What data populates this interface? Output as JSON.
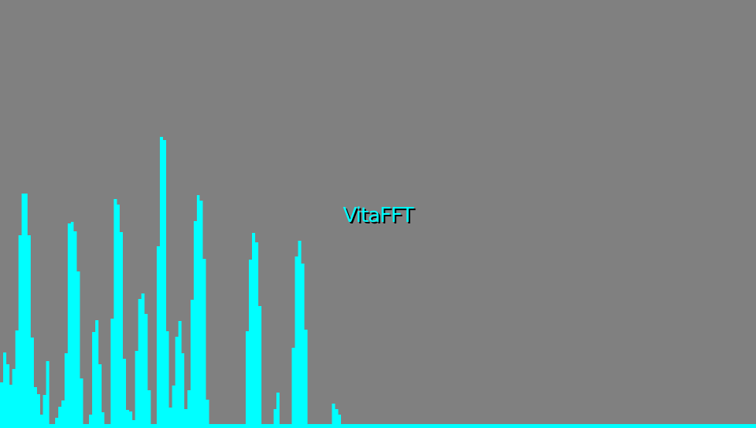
{
  "app": {
    "title": "VitaFFT",
    "background_color": "#808080",
    "bar_color": "#00ffff",
    "title_color": "#00ffff",
    "title_shadow_color": "#000000"
  },
  "chart_data": {
    "type": "bar",
    "title": "",
    "xlabel": "",
    "ylabel": "",
    "bin_count": 240,
    "ylim": [
      0,
      1
    ],
    "values": [
      0.152,
      0.255,
      0.214,
      0.144,
      0.199,
      0.332,
      0.66,
      0.805,
      0.805,
      0.66,
      0.308,
      0.136,
      0.111,
      0.04,
      0.11,
      0.226,
      0.008,
      0.008,
      0.031,
      0.069,
      0.089,
      0.252,
      0.701,
      0.706,
      0.673,
      0.536,
      0.165,
      0.008,
      0.008,
      0.04,
      0.327,
      0.367,
      0.214,
      0.049,
      0.008,
      0.008,
      0.371,
      0.785,
      0.765,
      0.672,
      0.234,
      0.058,
      0.052,
      0.023,
      0.261,
      0.44,
      0.459,
      0.388,
      0.126,
      0.008,
      0.008,
      0.623,
      1.0,
      0.989,
      0.328,
      0.065,
      0.142,
      0.31,
      0.363,
      0.253,
      0.059,
      0.126,
      0.438,
      0.708,
      0.799,
      0.781,
      0.578,
      0.092,
      0.008,
      0.008,
      0.008,
      0.008,
      0.008,
      0.008,
      0.008,
      0.008,
      0.008,
      0.008,
      0.008,
      0.008,
      0.329,
      0.577,
      0.669,
      0.636,
      0.415,
      0.008,
      0.008,
      0.008,
      0.008,
      0.059,
      0.118,
      0.008,
      0.008,
      0.008,
      0.008,
      0.273,
      0.586,
      0.641,
      0.562,
      0.334,
      0.008,
      0.008,
      0.008,
      0.008,
      0.008,
      0.008,
      0.008,
      0.008,
      0.08,
      0.061,
      0.04,
      0.008,
      0.008,
      0.008,
      0.008,
      0.008,
      0.008,
      0.008,
      0.008,
      0.008,
      0.008,
      0.008,
      0.008,
      0.008,
      0.008,
      0.008,
      0.008,
      0.008,
      0.008,
      0.008,
      0.008,
      0.008,
      0.008,
      0.008,
      0.008,
      0.008,
      0.008,
      0.008,
      0.008,
      0.008,
      0.008,
      0.008,
      0.008,
      0.008,
      0.008,
      0.008,
      0.008,
      0.008,
      0.008,
      0.008,
      0.008,
      0.008,
      0.008,
      0.008,
      0.008,
      0.008,
      0.008,
      0.008,
      0.008,
      0.008,
      0.008,
      0.008,
      0.008,
      0.008,
      0.008,
      0.008,
      0.008,
      0.008,
      0.008,
      0.008,
      0.008,
      0.008,
      0.008,
      0.008,
      0.008,
      0.008,
      0.008,
      0.008,
      0.008,
      0.008,
      0.008,
      0.008,
      0.008,
      0.008,
      0.008,
      0.008,
      0.008,
      0.008,
      0.008,
      0.008,
      0.008,
      0.008,
      0.008,
      0.008,
      0.008,
      0.008,
      0.008,
      0.008,
      0.008,
      0.008,
      0.008,
      0.008,
      0.008,
      0.008,
      0.008,
      0.008,
      0.008,
      0.008,
      0.008,
      0.008,
      0.008,
      0.008,
      0.008,
      0.008,
      0.008,
      0.008,
      0.008,
      0.008,
      0.008,
      0.008,
      0.008,
      0.008,
      0.008,
      0.008,
      0.008,
      0.008,
      0.008,
      0.008,
      0.008,
      0.008,
      0.008,
      0.008,
      0.008,
      0.008,
      0.008,
      0.008,
      0.008,
      0.008,
      0.008,
      0.008,
      0.008,
      0.008,
      0.008,
      0.008,
      0.008,
      0.008
    ]
  }
}
